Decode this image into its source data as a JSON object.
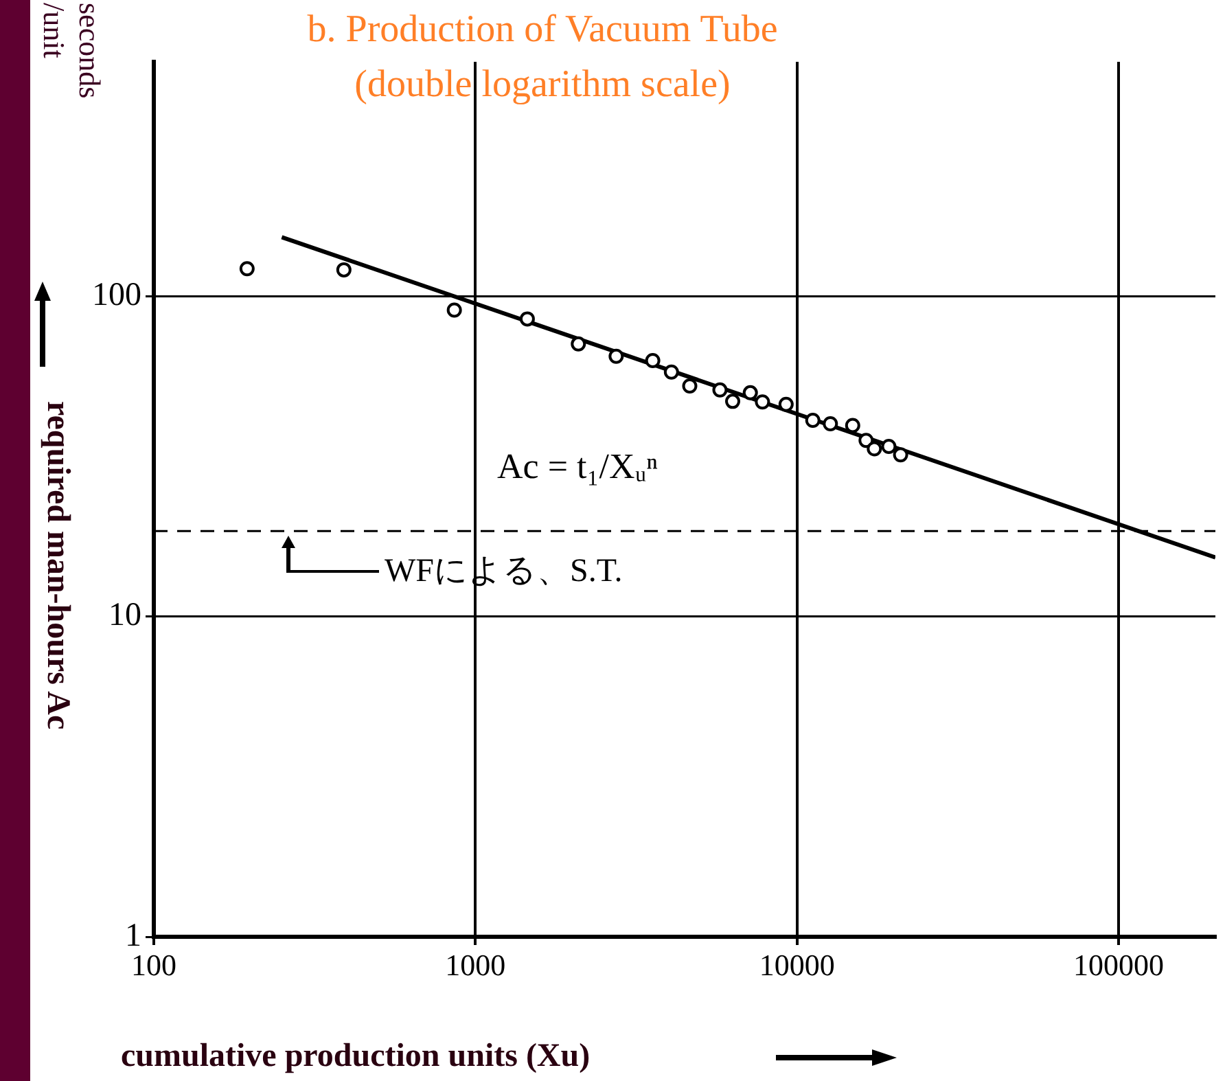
{
  "chart_data": {
    "type": "scatter",
    "title": "b. Production of Vacuum Tube",
    "subtitle": "(double logarithm scale)",
    "xlabel": "cumulative production units (Xu)",
    "ylabel": "required man-hours Ac",
    "annotations": [
      "seconds /unit",
      "Ac = t₁/Xᵤⁿ"
    ],
    "log": "xy",
    "xlim": [
      100,
      200000
    ],
    "ylim": [
      1,
      540
    ],
    "xticks": [
      100,
      1000,
      10000,
      100000
    ],
    "yticks": [
      1,
      10,
      100
    ],
    "grid": true,
    "ref_lines": [
      {
        "axis": "y",
        "value": 18.5,
        "label": "WFによる、S.T.",
        "color": "#000000",
        "line_style": "dashed"
      }
    ],
    "series": [
      {
        "type": "scatter",
        "color": "#000000",
        "marker": "circle",
        "x": [
          195,
          390,
          860,
          1450,
          2090,
          2740,
          3560,
          4070,
          4640,
          5760,
          6310,
          7160,
          7810,
          9250,
          11200,
          12700,
          14900,
          16400,
          17400,
          19300,
          21000
        ],
        "values": [
          122,
          121,
          90.6,
          85,
          71,
          65,
          63,
          58,
          52.5,
          51,
          47,
          50,
          46.8,
          46,
          41,
          40,
          39.5,
          35.5,
          33.4,
          34,
          32
        ]
      },
      {
        "type": "line",
        "color": "#000000",
        "x": [
          250,
          200000
        ],
        "values": [
          153,
          15.3
        ],
        "line_style": "solid"
      }
    ]
  }
}
